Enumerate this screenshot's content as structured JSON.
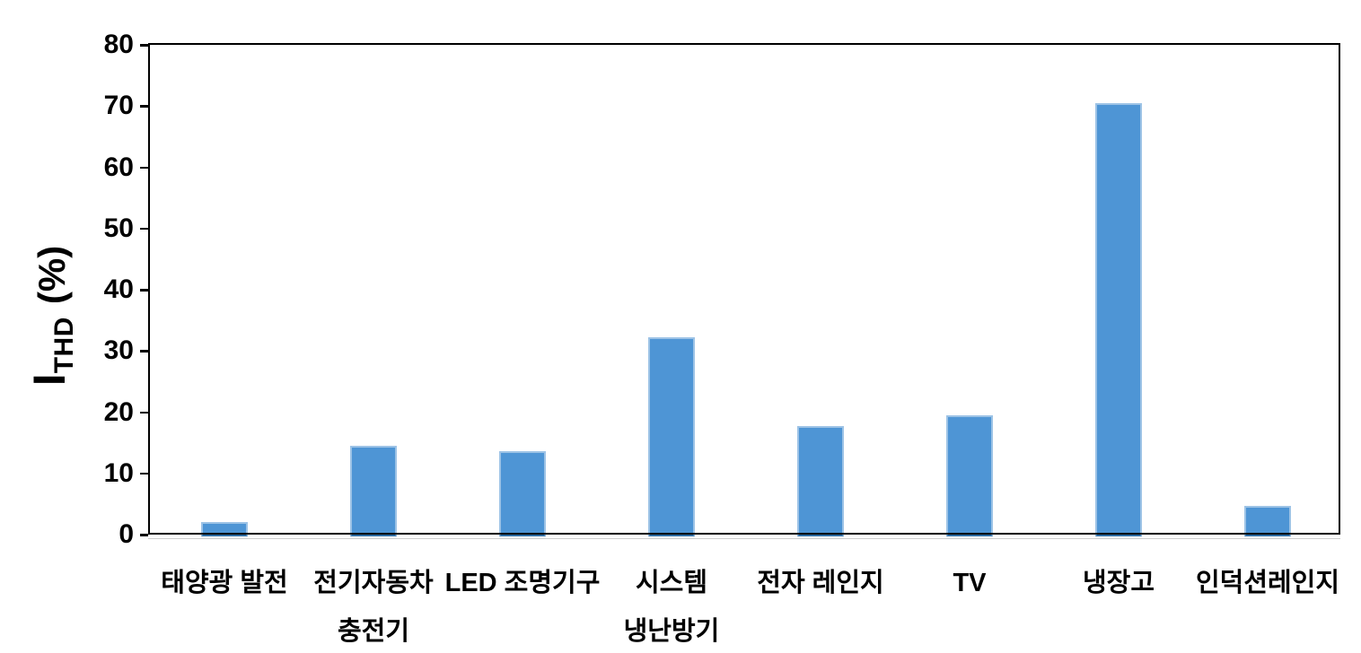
{
  "chart_data": {
    "type": "bar",
    "title": "",
    "xlabel": "",
    "ylabel": {
      "main": "I",
      "subscript": "THD",
      "unit": "(%)"
    },
    "ylim": [
      0,
      80
    ],
    "ytick_step": 10,
    "yticks": [
      0,
      10,
      20,
      30,
      40,
      50,
      60,
      70,
      80
    ],
    "categories": [
      {
        "lines": [
          "태양광 발전"
        ]
      },
      {
        "lines": [
          "전기자동차",
          "충전기"
        ]
      },
      {
        "lines": [
          "LED 조명기구"
        ]
      },
      {
        "lines": [
          "시스템",
          "냉난방기"
        ]
      },
      {
        "lines": [
          "전자 레인지"
        ]
      },
      {
        "lines": [
          "TV"
        ]
      },
      {
        "lines": [
          "냉장고"
        ]
      },
      {
        "lines": [
          "인덕션레인지"
        ]
      }
    ],
    "values": [
      1.8,
      14.2,
      13.3,
      32.0,
      17.4,
      19.2,
      70.2,
      4.4
    ],
    "grid": false,
    "legend": false,
    "colors": {
      "bar_fill": "#4E95D5",
      "bar_edge": "#9DC3E6",
      "bar_bottom_edge": "#2E6DA4",
      "axis": "#000000",
      "text": "#000000"
    }
  }
}
